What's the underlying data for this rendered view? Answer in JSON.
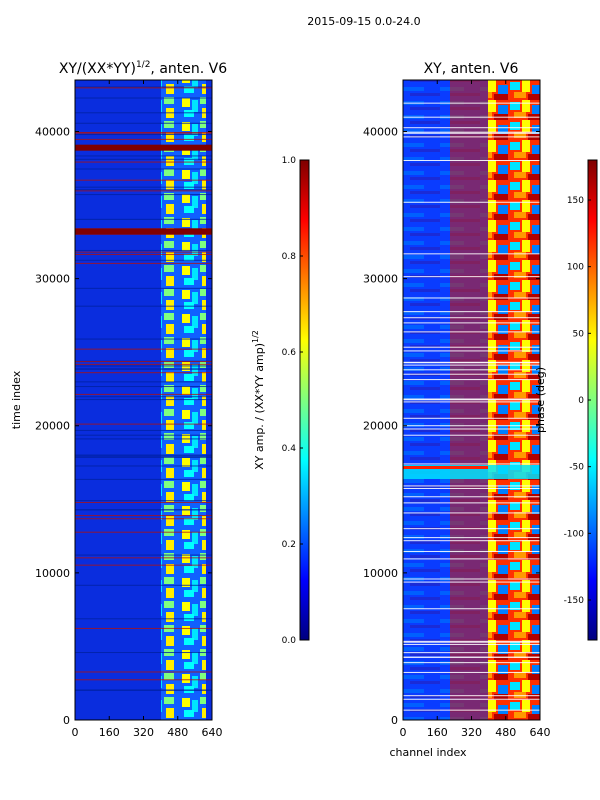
{
  "figure": {
    "suptitle": "2015-09-15 0.0-24.0"
  },
  "colors": {
    "colormap": "jet",
    "jet_stops": [
      "#00007f",
      "#0000ff",
      "#007fff",
      "#00ffff",
      "#7fff7f",
      "#ffff00",
      "#ff7f00",
      "#ff0000",
      "#7f0000"
    ]
  },
  "chart_data": [
    {
      "type": "heatmap",
      "title": "XY/(XX*YY)",
      "title_exponent": "1/2",
      "title_suffix": ", anten. V6",
      "xlabel": "",
      "ylabel": "time index",
      "xlim": [
        0,
        640
      ],
      "ylim": [
        0,
        43500
      ],
      "xticks": [
        0,
        160,
        320,
        480,
        640
      ],
      "yticks": [
        0,
        10000,
        20000,
        30000,
        40000
      ],
      "xtick_labels": [
        "0",
        "160",
        "320",
        "480",
        "640"
      ],
      "ytick_labels": [
        "0",
        "10000",
        "20000",
        "30000",
        "40000"
      ],
      "background_value": 0.12,
      "bright_band_channels": [
        [
          400,
          480
        ],
        [
          490,
          560
        ],
        [
          570,
          600
        ]
      ],
      "bright_value": 0.6,
      "saturated_time_rows": [
        33200,
        38900
      ],
      "colorbar": {
        "label": "XY amp. / (XX*YY amp)",
        "label_exponent": "1/2",
        "range": [
          0.0,
          1.0
        ],
        "ticks": [
          0.0,
          0.2,
          0.4,
          0.6,
          0.8,
          1.0
        ],
        "tick_labels": [
          "0.0",
          "0.2",
          "0.4",
          "0.6",
          "0.8",
          "1.0"
        ]
      }
    },
    {
      "type": "heatmap",
      "title": "XY, anten. V6",
      "xlabel": "channel index",
      "ylabel": "",
      "xlim": [
        0,
        640
      ],
      "ylim": [
        0,
        43500
      ],
      "xticks": [
        0,
        160,
        320,
        480,
        640
      ],
      "yticks": [
        0,
        10000,
        20000,
        30000,
        40000
      ],
      "xtick_labels": [
        "0",
        "160",
        "320",
        "480",
        "640"
      ],
      "ytick_labels": [
        "0",
        "10000",
        "20000",
        "30000",
        "40000"
      ],
      "colorbar": {
        "label": "phase (deg)",
        "range": [
          -180,
          180
        ],
        "ticks": [
          -150,
          -100,
          -50,
          0,
          50,
          100,
          150
        ],
        "tick_labels": [
          "-150",
          "-100",
          "-50",
          "0",
          "50",
          "100",
          "150"
        ]
      }
    }
  ]
}
